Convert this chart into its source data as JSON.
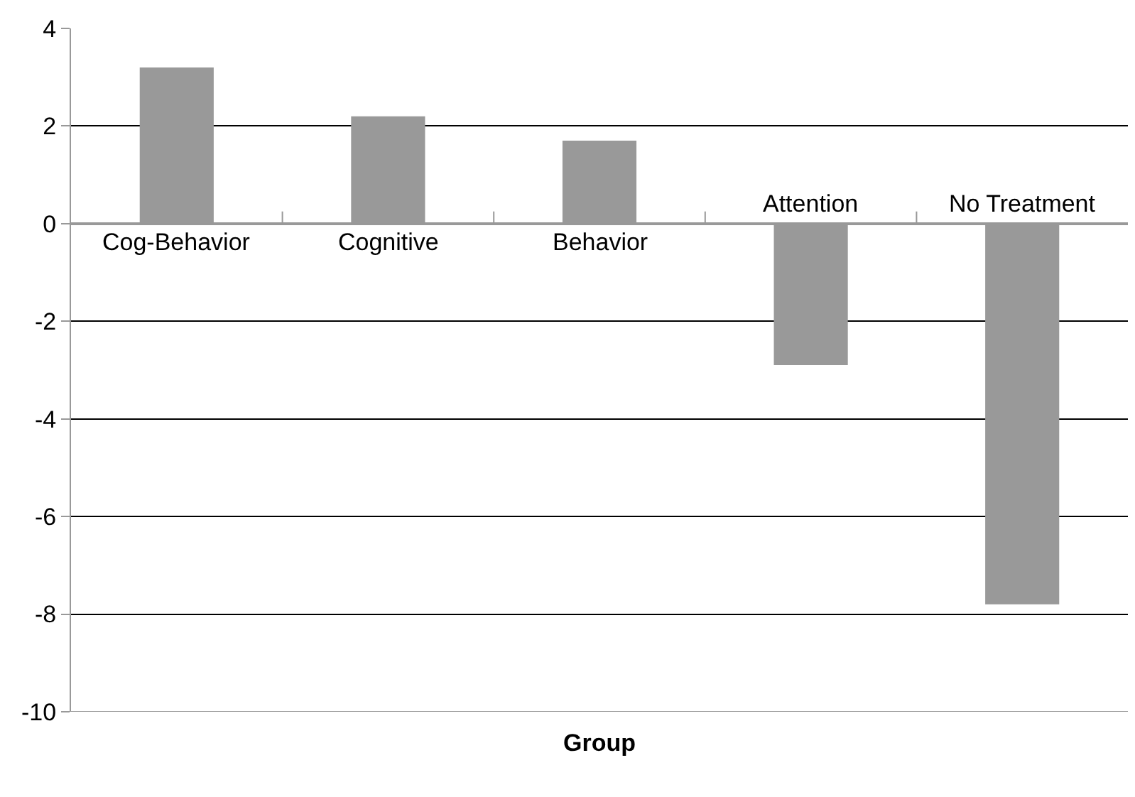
{
  "chart_data": {
    "type": "bar",
    "xlabel": "Group",
    "categories": [
      "Cog-Behavior",
      "Cognitive",
      "Behavior",
      "Attention",
      "No Treatment"
    ],
    "values": [
      3.2,
      2.2,
      1.7,
      -2.9,
      -7.8
    ],
    "color": "#999999",
    "ylim": [
      -10,
      4
    ],
    "yticks": [
      -10,
      -8,
      -6,
      -4,
      -2,
      0,
      2,
      4
    ],
    "grid": "y"
  }
}
